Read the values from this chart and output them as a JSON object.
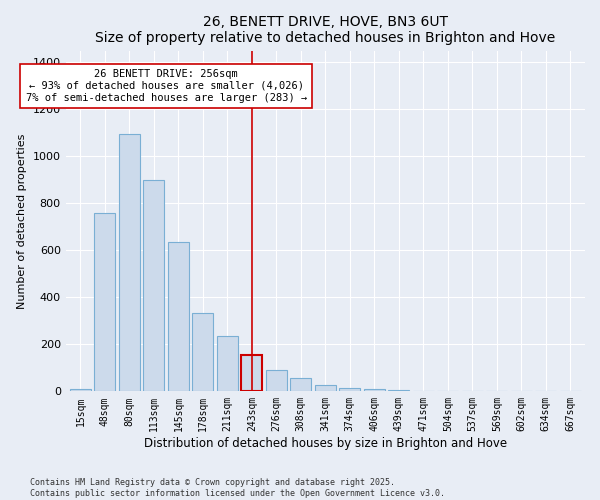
{
  "title": "26, BENETT DRIVE, HOVE, BN3 6UT",
  "subtitle": "Size of property relative to detached houses in Brighton and Hove",
  "xlabel": "Distribution of detached houses by size in Brighton and Hove",
  "ylabel": "Number of detached properties",
  "categories": [
    "15sqm",
    "48sqm",
    "80sqm",
    "113sqm",
    "145sqm",
    "178sqm",
    "211sqm",
    "243sqm",
    "276sqm",
    "308sqm",
    "341sqm",
    "374sqm",
    "406sqm",
    "439sqm",
    "471sqm",
    "504sqm",
    "537sqm",
    "569sqm",
    "602sqm",
    "634sqm",
    "667sqm"
  ],
  "values": [
    12,
    758,
    1097,
    900,
    635,
    335,
    235,
    155,
    90,
    55,
    25,
    15,
    8,
    5,
    3,
    2,
    1,
    1,
    0,
    0,
    0
  ],
  "bar_color": "#ccdaeb",
  "bar_edge_color": "#7aafd4",
  "highlight_index": 7,
  "highlight_bar_edge_color": "#cc0000",
  "vline_color": "#cc0000",
  "annotation_text": "26 BENETT DRIVE: 256sqm\n← 93% of detached houses are smaller (4,026)\n7% of semi-detached houses are larger (283) →",
  "annotation_box_facecolor": "white",
  "annotation_box_edgecolor": "#cc0000",
  "ylim": [
    0,
    1450
  ],
  "yticks": [
    0,
    200,
    400,
    600,
    800,
    1000,
    1200,
    1400
  ],
  "footnote1": "Contains HM Land Registry data © Crown copyright and database right 2025.",
  "footnote2": "Contains public sector information licensed under the Open Government Licence v3.0.",
  "background_color": "#e8edf5",
  "plot_background_color": "#e8edf5",
  "grid_color": "white",
  "title_fontsize": 10,
  "label_fontsize": 8,
  "tick_fontsize": 7,
  "annot_fontsize": 7.5
}
